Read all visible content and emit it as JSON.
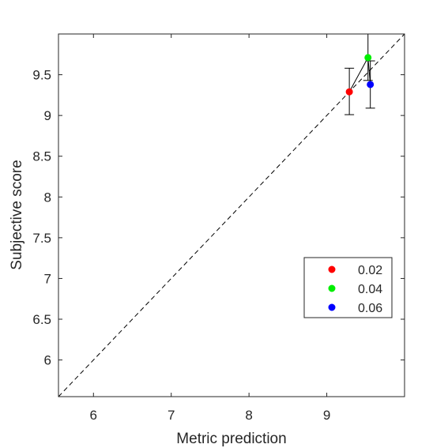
{
  "chart_data": {
    "type": "scatter",
    "title": "",
    "xlabel": "Metric prediction",
    "ylabel": "Subjective score",
    "xlim": [
      5.55,
      10.0
    ],
    "ylim": [
      5.55,
      10.0
    ],
    "x_ticks": [
      6,
      7,
      8,
      9
    ],
    "x_tick_labels": [
      "6",
      "7",
      "8",
      "9"
    ],
    "y_ticks": [
      6,
      6.5,
      7,
      7.5,
      8,
      8.5,
      9,
      9.5
    ],
    "y_tick_labels": [
      "6",
      "6.5",
      "7",
      "7.5",
      "8",
      "8.5",
      "9",
      "9.5"
    ],
    "grid": false,
    "legend_position": "lower-right",
    "reference_line": {
      "style": "dashed",
      "color": "#000000",
      "from": [
        5.55,
        5.55
      ],
      "to": [
        10.0,
        10.0
      ]
    },
    "connector_line": {
      "color": "#000000",
      "points": [
        [
          9.29,
          9.29
        ],
        [
          9.53,
          9.71
        ],
        [
          9.56,
          9.38
        ]
      ]
    },
    "series": [
      {
        "name": "0.02",
        "color": "#ff0000",
        "x": 9.29,
        "y": 9.29,
        "err_low": 9.01,
        "err_high": 9.58
      },
      {
        "name": "0.04",
        "color": "#00ee00",
        "x": 9.53,
        "y": 9.71,
        "err_low": 9.43,
        "err_high": 10.0
      },
      {
        "name": "0.06",
        "color": "#0000ff",
        "x": 9.56,
        "y": 9.38,
        "err_low": 9.09,
        "err_high": 9.67
      }
    ]
  }
}
